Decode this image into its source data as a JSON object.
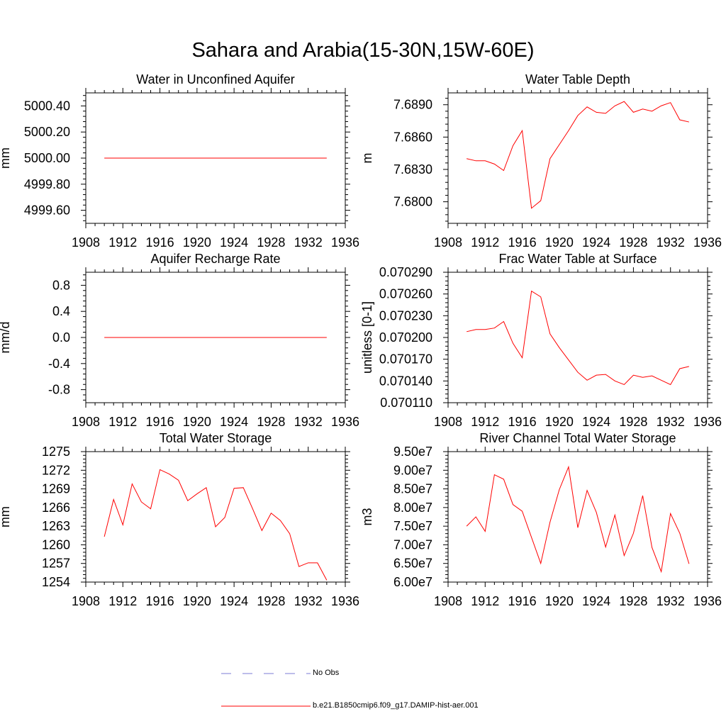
{
  "figure": {
    "title": "Sahara and Arabia(15-30N,15W-60E)"
  },
  "colors": {
    "series": "#ff0000",
    "obs": "#7b7bd6",
    "axis": "#000000"
  },
  "chart_data": [
    {
      "type": "line",
      "title": "Water in Unconfined Aquifer",
      "ylabel": "mm",
      "xlim": [
        1908,
        1936
      ],
      "xticks": [
        1908,
        1912,
        1916,
        1920,
        1924,
        1928,
        1932,
        1936
      ],
      "ylim": [
        4999.5,
        5000.5
      ],
      "yticks": [
        4999.6,
        4999.8,
        5000.0,
        5000.2,
        5000.4
      ],
      "ytick_labels": [
        "4999.60",
        "4999.80",
        "5000.00",
        "5000.20",
        "5000.40"
      ],
      "x": [
        1910,
        1934
      ],
      "values": [
        5000.0,
        5000.0
      ]
    },
    {
      "type": "line",
      "title": "Water Table Depth",
      "ylabel": "m",
      "xlim": [
        1908,
        1936
      ],
      "xticks": [
        1908,
        1912,
        1916,
        1920,
        1924,
        1928,
        1932,
        1936
      ],
      "ylim": [
        7.678,
        7.6901
      ],
      "yticks": [
        7.68,
        7.683,
        7.686,
        7.689
      ],
      "ytick_labels": [
        "7.6800",
        "7.6830",
        "7.6860",
        "7.6890"
      ],
      "x": [
        1910,
        1911,
        1912,
        1913,
        1914,
        1915,
        1916,
        1917,
        1918,
        1919,
        1920,
        1921,
        1922,
        1923,
        1924,
        1925,
        1926,
        1927,
        1928,
        1929,
        1930,
        1931,
        1932,
        1933,
        1934
      ],
      "values": [
        7.684,
        7.6838,
        7.6838,
        7.6835,
        7.6829,
        7.6852,
        7.6866,
        7.6794,
        7.6801,
        7.684,
        7.6853,
        7.6866,
        7.688,
        7.6888,
        7.6883,
        7.6882,
        7.6889,
        7.6893,
        7.6883,
        7.6886,
        7.6884,
        7.6889,
        7.6892,
        7.6876,
        7.6874
      ]
    },
    {
      "type": "line",
      "title": "Aquifer Recharge Rate",
      "ylabel": "mm/d",
      "xlim": [
        1908,
        1936
      ],
      "xticks": [
        1908,
        1912,
        1916,
        1920,
        1924,
        1928,
        1932,
        1936
      ],
      "ylim": [
        -1.0,
        1.0
      ],
      "yticks": [
        -0.8,
        -0.4,
        0.0,
        0.4,
        0.8
      ],
      "ytick_labels": [
        "-0.8",
        "-0.4",
        "0.0",
        "0.4",
        "0.8"
      ],
      "x": [
        1910,
        1934
      ],
      "values": [
        0.0,
        0.0
      ]
    },
    {
      "type": "line",
      "title": "Frac Water Table at Surface",
      "ylabel": "unitless [0-1]",
      "xlim": [
        1908,
        1936
      ],
      "xticks": [
        1908,
        1912,
        1916,
        1920,
        1924,
        1928,
        1932,
        1936
      ],
      "ylim": [
        0.07011,
        0.07029
      ],
      "yticks": [
        0.07011,
        0.07014,
        0.07017,
        0.0702,
        0.07023,
        0.07026,
        0.07029
      ],
      "ytick_labels": [
        "0.070110",
        "0.070140",
        "0.070170",
        "0.070200",
        "0.070230",
        "0.070260",
        "0.070290"
      ],
      "x": [
        1910,
        1911,
        1912,
        1913,
        1914,
        1915,
        1916,
        1917,
        1918,
        1919,
        1920,
        1921,
        1922,
        1923,
        1924,
        1925,
        1926,
        1927,
        1928,
        1929,
        1930,
        1931,
        1932,
        1933,
        1934
      ],
      "values": [
        0.070208,
        0.070211,
        0.070211,
        0.070213,
        0.070222,
        0.070192,
        0.070172,
        0.070264,
        0.070256,
        0.070205,
        0.070186,
        0.070169,
        0.070152,
        0.070141,
        0.070148,
        0.070149,
        0.07014,
        0.070135,
        0.070148,
        0.070145,
        0.070147,
        0.070141,
        0.070135,
        0.070157,
        0.07016
      ]
    },
    {
      "type": "line",
      "title": "Total Water Storage",
      "ylabel": "mm",
      "xlim": [
        1908,
        1936
      ],
      "xticks": [
        1908,
        1912,
        1916,
        1920,
        1924,
        1928,
        1932,
        1936
      ],
      "ylim": [
        1254,
        1275
      ],
      "yticks": [
        1254,
        1257,
        1260,
        1263,
        1266,
        1269,
        1272,
        1275
      ],
      "ytick_labels": [
        "1254",
        "1257",
        "1260",
        "1263",
        "1266",
        "1269",
        "1272",
        "1275"
      ],
      "x": [
        1910,
        1911,
        1912,
        1913,
        1914,
        1915,
        1916,
        1917,
        1918,
        1919,
        1920,
        1921,
        1922,
        1923,
        1924,
        1925,
        1926,
        1927,
        1928,
        1929,
        1930,
        1931,
        1932,
        1933,
        1934
      ],
      "values": [
        1261.3,
        1267.3,
        1263.2,
        1269.8,
        1266.9,
        1265.8,
        1272.1,
        1271.4,
        1270.4,
        1267.1,
        1268.2,
        1269.2,
        1262.9,
        1264.4,
        1269.1,
        1269.2,
        1265.8,
        1262.3,
        1265.1,
        1263.9,
        1261.8,
        1256.5,
        1257.1,
        1257.1,
        1254.3
      ]
    },
    {
      "type": "line",
      "title": "River Channel Total Water Storage",
      "ylabel": "m3",
      "xlim": [
        1908,
        1936
      ],
      "xticks": [
        1908,
        1912,
        1916,
        1920,
        1924,
        1928,
        1932,
        1936
      ],
      "ylim": [
        60000000,
        95000000
      ],
      "yticks": [
        60000000,
        65000000,
        70000000,
        75000000,
        80000000,
        85000000,
        90000000,
        95000000
      ],
      "ytick_labels": [
        "6.00e7",
        "6.50e7",
        "7.00e7",
        "7.50e7",
        "8.00e7",
        "8.50e7",
        "9.00e7",
        "9.50e7"
      ],
      "x": [
        1910,
        1911,
        1912,
        1913,
        1914,
        1915,
        1916,
        1917,
        1918,
        1919,
        1920,
        1921,
        1922,
        1923,
        1924,
        1925,
        1926,
        1927,
        1928,
        1929,
        1930,
        1931,
        1932,
        1933,
        1934
      ],
      "values": [
        75000000,
        77500000,
        73600000,
        88800000,
        87600000,
        80800000,
        79000000,
        72000000,
        65000000,
        76100000,
        84800000,
        90900000,
        74600000,
        84600000,
        78700000,
        69400000,
        78000000,
        67100000,
        73100000,
        83200000,
        69300000,
        62800000,
        78400000,
        73100000,
        64900000
      ]
    }
  ],
  "legend": {
    "placement": "bottom-center",
    "entries": [
      {
        "label": "No Obs",
        "style": "dashed"
      },
      {
        "label": "b.e21.B1850cmip6.f09_g17.DAMIP-hist-aer.001",
        "style": "solid"
      }
    ]
  }
}
